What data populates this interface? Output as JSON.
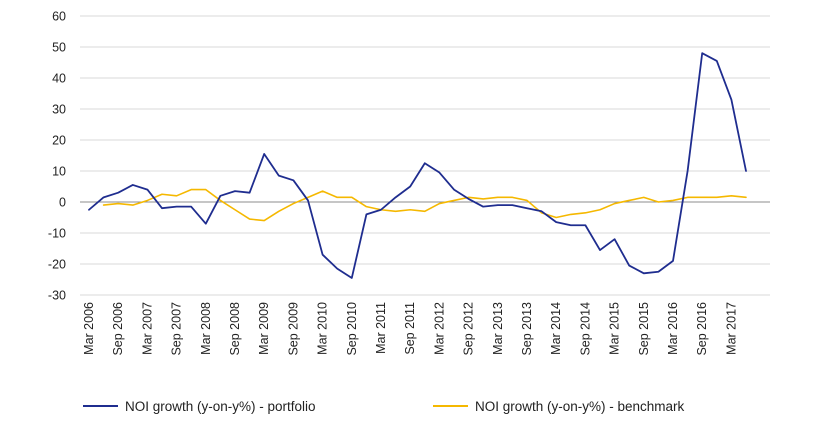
{
  "chart_data": {
    "type": "line",
    "title": "",
    "xlabel": "",
    "ylabel": "",
    "ylim": [
      -30,
      60
    ],
    "yticks": [
      "60",
      "50",
      "40",
      "30",
      "20",
      "10",
      "0",
      "-10",
      "-20",
      "-30"
    ],
    "x_tick_labels": [
      "Mar 2006",
      "Sep 2006",
      "Mar 2007",
      "Sep 2007",
      "Mar 2008",
      "Sep 2008",
      "Mar 2009",
      "Sep 2009",
      "Mar 2010",
      "Sep 2010",
      "Mar 2011",
      "Sep 2011",
      "Mar 2012",
      "Sep 2012",
      "Mar 2013",
      "Sep 2013",
      "Mar 2014",
      "Sep 2014",
      "Mar 2015",
      "Sep 2015",
      "Mar 2016",
      "Sep 2016",
      "Mar 2017"
    ],
    "x": [
      "Mar 2006",
      "Jun 2006",
      "Sep 2006",
      "Dec 2006",
      "Mar 2007",
      "Jun 2007",
      "Sep 2007",
      "Dec 2007",
      "Mar 2008",
      "Jun 2008",
      "Sep 2008",
      "Dec 2008",
      "Mar 2009",
      "Jun 2009",
      "Sep 2009",
      "Dec 2009",
      "Mar 2010",
      "Jun 2010",
      "Sep 2010",
      "Dec 2010",
      "Mar 2011",
      "Jun 2011",
      "Sep 2011",
      "Dec 2011",
      "Mar 2012",
      "Jun 2012",
      "Sep 2012",
      "Dec 2012",
      "Mar 2013",
      "Jun 2013",
      "Sep 2013",
      "Dec 2013",
      "Mar 2014",
      "Jun 2014",
      "Sep 2014",
      "Dec 2014",
      "Mar 2015",
      "Jun 2015",
      "Sep 2015",
      "Dec 2015",
      "Mar 2016",
      "Jun 2016",
      "Sep 2016",
      "Dec 2016",
      "Mar 2017",
      "Jun 2017"
    ],
    "series": [
      {
        "name": "NOI growth (y-on-y%) - portfolio",
        "color": "#1f2d8f",
        "values": [
          -2.5,
          1.5,
          3,
          5.5,
          4,
          -2,
          -1.5,
          -1.5,
          -7,
          2,
          3.5,
          3,
          15.5,
          8.5,
          7,
          0.5,
          -17,
          -21.5,
          -24.5,
          -4,
          -2.5,
          1.5,
          5,
          12.5,
          9.5,
          4,
          1,
          -1.5,
          -1,
          -1,
          -2,
          -3,
          -6.5,
          -7.5,
          -7.5,
          -15.5,
          -12,
          -20.5,
          -23,
          -22.5,
          -19,
          10,
          48,
          45.5,
          33,
          10
        ]
      },
      {
        "name": "NOI growth (y-on-y%) - benchmark",
        "color": "#f5b800",
        "values": [
          null,
          -1,
          -0.5,
          -1,
          0.5,
          2.5,
          2,
          4,
          4,
          0.5,
          -2.5,
          -5.5,
          -6,
          -3,
          -0.5,
          1.5,
          3.5,
          1.5,
          1.5,
          -1.5,
          -2.5,
          -3,
          -2.5,
          -3,
          -0.5,
          0.5,
          1.5,
          1,
          1.5,
          1.5,
          0.5,
          -3.5,
          -5,
          -4,
          -3.5,
          -2.5,
          -0.5,
          0.5,
          1.5,
          0,
          0.5,
          1.5,
          1.5,
          1.5,
          2,
          1.5
        ]
      }
    ],
    "grid": true,
    "legend_position": "bottom"
  }
}
